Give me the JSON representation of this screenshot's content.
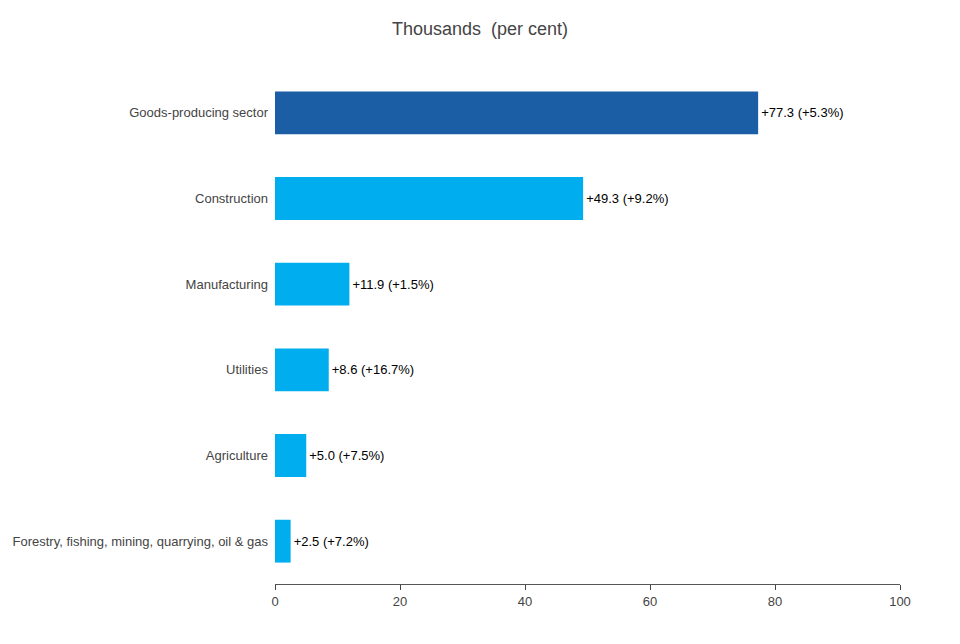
{
  "chart_data": {
    "type": "bar",
    "orientation": "horizontal",
    "title": "Thousands  (per cent)",
    "categories": [
      "Forestry, fishing, mining, quarrying, oil & gas",
      "Agriculture",
      "Utilities",
      "Manufacturing",
      "Construction",
      "Goods-producing sector"
    ],
    "values": [
      2.5,
      5.0,
      8.6,
      11.9,
      49.3,
      77.3
    ],
    "value_labels": [
      "+2.5 (+7.2%)",
      "+5.0 (+7.5%)",
      "+8.6 (+16.7%)",
      "+11.9 (+1.5%)",
      "+49.3 (+9.2%)",
      "+77.3 (+5.3%)"
    ],
    "data_labels": true,
    "colors": [
      "#00AEEF",
      "#00AEEF",
      "#00AEEF",
      "#00AEEF",
      "#00AEEF",
      "#1B5EA6"
    ],
    "xlim": [
      0,
      100
    ],
    "xticks": [
      0,
      20,
      40,
      60,
      80,
      100
    ],
    "grid": false
  }
}
